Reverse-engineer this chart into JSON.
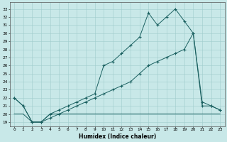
{
  "xlabel": "Humidex (Indice chaleur)",
  "bg_color": "#c8e8e8",
  "grid_color": "#a0cccc",
  "line_color": "#1a6060",
  "xlim": [
    -0.5,
    23.5
  ],
  "ylim": [
    18.5,
    33.8
  ],
  "xticks": [
    0,
    1,
    2,
    3,
    4,
    5,
    6,
    7,
    8,
    9,
    10,
    11,
    12,
    13,
    14,
    15,
    16,
    17,
    18,
    19,
    20,
    21,
    22,
    23
  ],
  "yticks": [
    19,
    20,
    21,
    22,
    23,
    24,
    25,
    26,
    27,
    28,
    29,
    30,
    31,
    32,
    33
  ],
  "line_flat_x": [
    0,
    1,
    2,
    3,
    4,
    5,
    6,
    7,
    8,
    9,
    10,
    11,
    12,
    13,
    14,
    15,
    16,
    17,
    18,
    19,
    20,
    21,
    22,
    23
  ],
  "line_flat_y": [
    20,
    20,
    19,
    19,
    20,
    20,
    20,
    20,
    20,
    20,
    20,
    20,
    20,
    20,
    20,
    20,
    20,
    20,
    20,
    20,
    20,
    20,
    20,
    20
  ],
  "line_mid_x": [
    0,
    1,
    2,
    3,
    4,
    5,
    6,
    7,
    8,
    9,
    10,
    11,
    12,
    13,
    14,
    15,
    16,
    17,
    18,
    19,
    20,
    21,
    22,
    23
  ],
  "line_mid_y": [
    22,
    21,
    19,
    19,
    19.5,
    20,
    20.5,
    21,
    21.5,
    22,
    22.5,
    23,
    23.5,
    24,
    25,
    26,
    26.5,
    27,
    27.5,
    28,
    30,
    21,
    21,
    20.5
  ],
  "line_top_x": [
    0,
    1,
    2,
    3,
    4,
    5,
    6,
    7,
    8,
    9,
    10,
    11,
    12,
    13,
    14,
    15,
    16,
    17,
    18,
    19,
    20,
    21,
    22,
    23
  ],
  "line_top_y": [
    22,
    21,
    19,
    19,
    20,
    20.5,
    21,
    21.5,
    22,
    22.5,
    26,
    26.5,
    27.5,
    28.5,
    29.5,
    32.5,
    31,
    32,
    33,
    31.5,
    30,
    21.5,
    21,
    20.5
  ]
}
